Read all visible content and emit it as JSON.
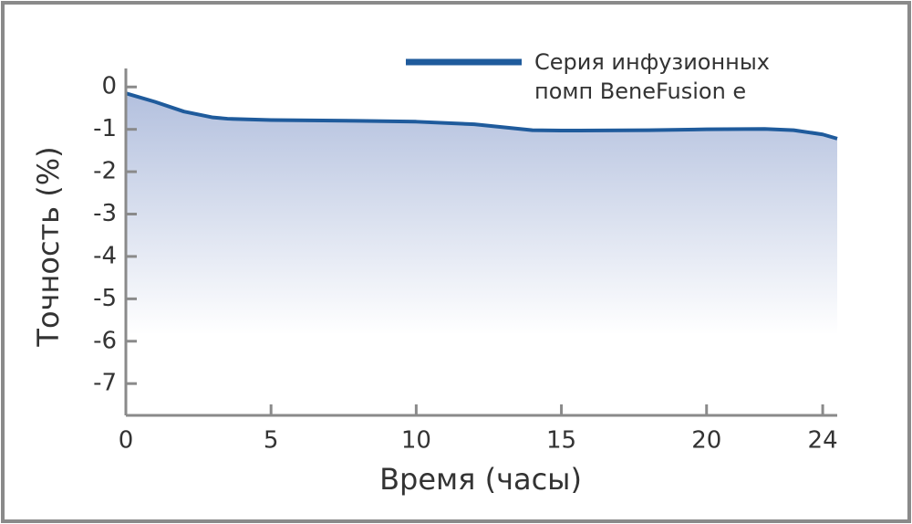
{
  "chart_data": {
    "type": "area",
    "x_label": "Время (часы)",
    "y_label": "Точность (%)",
    "x": [
      0,
      1,
      2,
      3,
      3.5,
      5,
      8,
      10,
      12,
      13,
      14,
      15,
      18,
      20,
      22,
      23,
      24,
      24.5
    ],
    "series": [
      {
        "name": "Серия инфузионных помп BeneFusion e",
        "color": "#1f5b9c",
        "values": [
          -0.15,
          -0.35,
          -0.58,
          -0.72,
          -0.75,
          -0.78,
          -0.8,
          -0.82,
          -0.88,
          -0.95,
          -1.02,
          -1.03,
          -1.02,
          -1.0,
          -0.99,
          -1.02,
          -1.12,
          -1.22
        ]
      }
    ],
    "fill_color": "#b3c0de",
    "xlim": [
      0,
      24.5
    ],
    "xticks": [
      0,
      5,
      10,
      15,
      20,
      24
    ],
    "ylim": [
      -7.75,
      0.35
    ],
    "yticks": [
      0,
      -1,
      -2,
      -3,
      -4,
      -5,
      -6,
      -7
    ],
    "legend": "top-right"
  }
}
